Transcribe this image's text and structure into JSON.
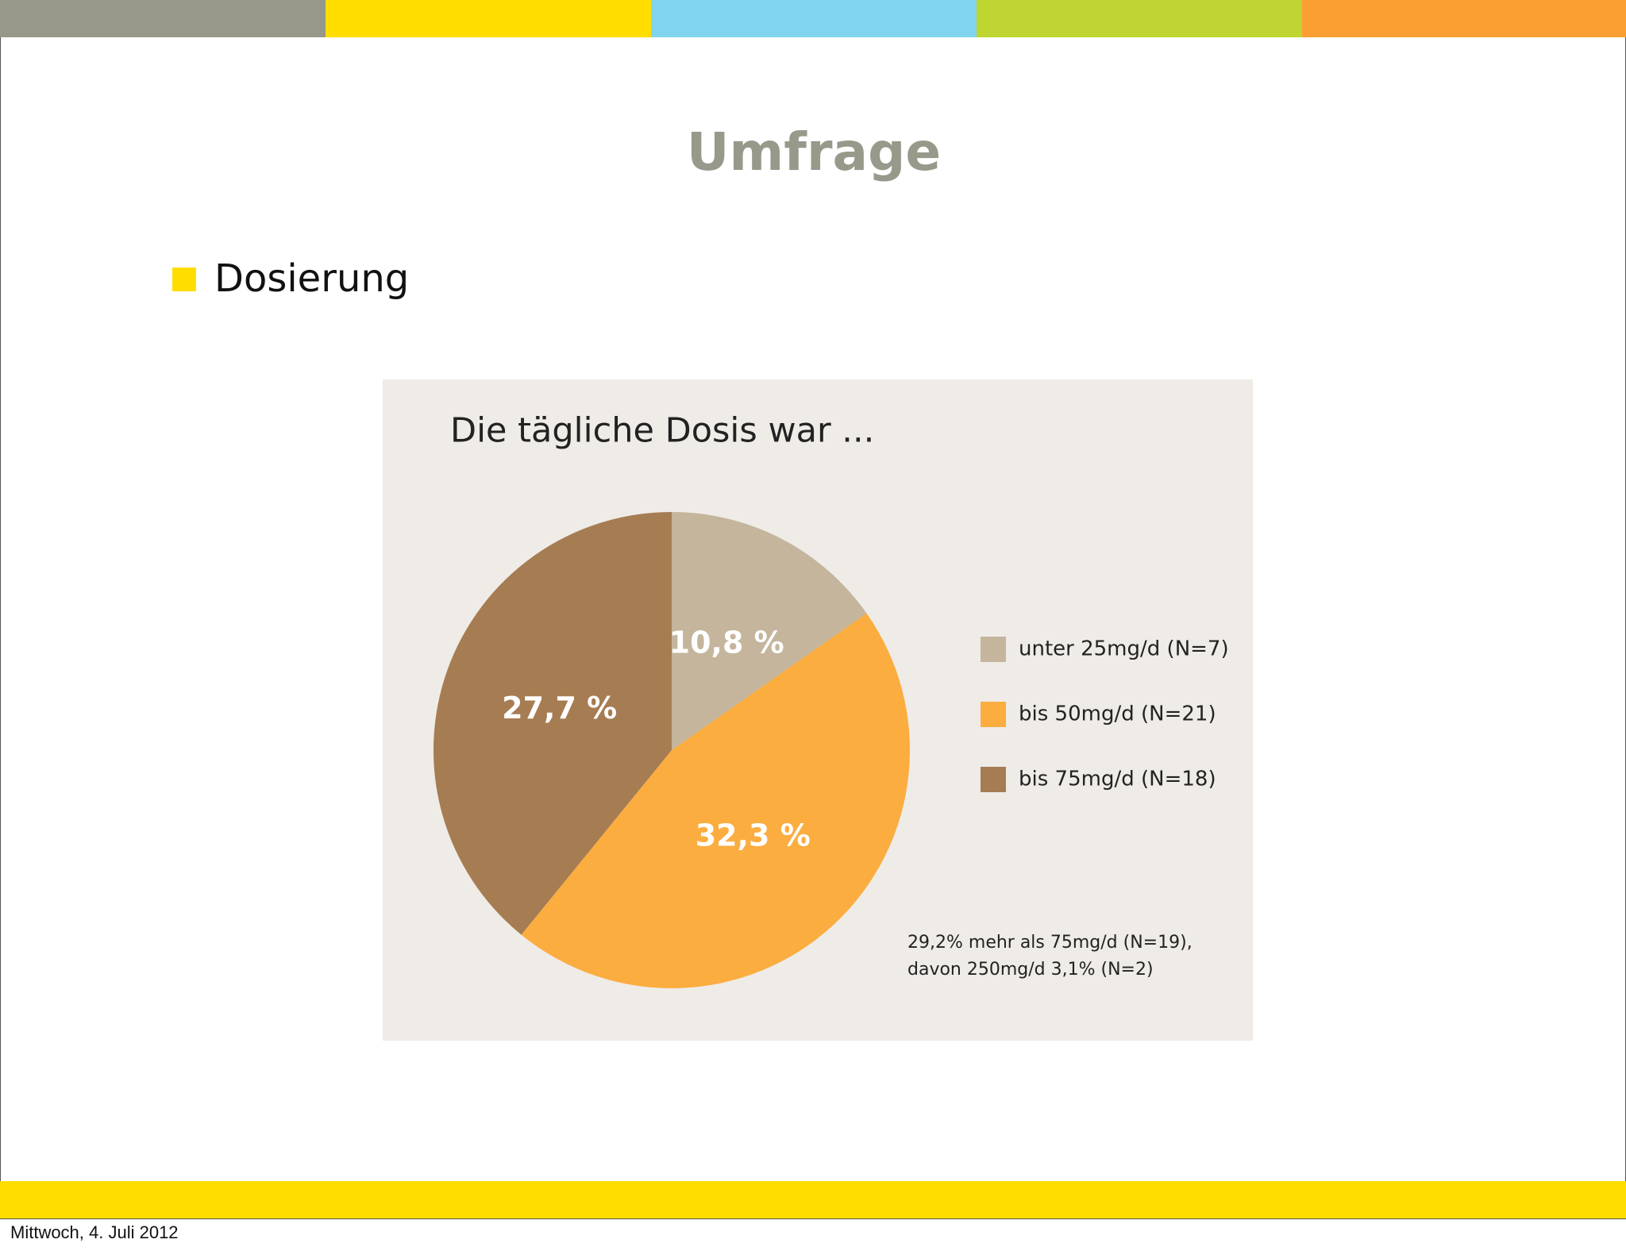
{
  "header": {
    "title": "Umfrage",
    "bullet": "Dosierung"
  },
  "footer": "Mittwoch, 4. Juli 2012",
  "chart_data": {
    "type": "pie",
    "title": "Die tägliche Dosis war ...",
    "categories": [
      "unter 25mg/d (N=7)",
      "bis 50mg/d (N=21)",
      "bis 75mg/d (N=18)"
    ],
    "values": [
      10.8,
      32.3,
      27.7
    ],
    "value_labels": [
      "10,8 %",
      "32,3 %",
      "27,7 %"
    ],
    "colors": [
      "#c4b59c",
      "#fbad40",
      "#a67c52"
    ],
    "annotation": [
      "29,2% mehr als 75mg/d (N=19),",
      "davon 250mg/d 3,1% (N=2)"
    ]
  }
}
